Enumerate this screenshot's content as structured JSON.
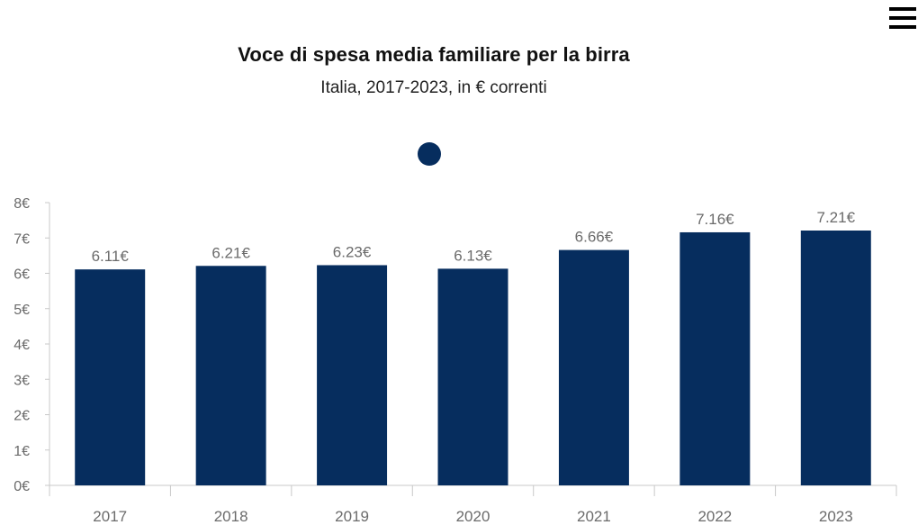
{
  "menu": {
    "icon": "hamburger-menu-icon"
  },
  "colors": {
    "bar": "#062d5e",
    "axis_text": "#6b6b6b",
    "axis_line": "#c8c8c8",
    "label_text": "#6b6b6b"
  },
  "chart_data": {
    "type": "bar",
    "title": "Voce di spesa media familiare per la birra",
    "subtitle": "Italia, 2017-2023, in € correnti",
    "xlabel": "",
    "ylabel": "",
    "categories": [
      "2017",
      "2018",
      "2019",
      "2020",
      "2021",
      "2022",
      "2023"
    ],
    "values": [
      6.11,
      6.21,
      6.23,
      6.13,
      6.66,
      7.16,
      7.21
    ],
    "value_labels": [
      "6.11€",
      "6.21€",
      "6.23€",
      "6.13€",
      "6.66€",
      "7.16€",
      "7.21€"
    ],
    "ylim": [
      0,
      8
    ],
    "y_ticks": [
      0,
      1,
      2,
      3,
      4,
      5,
      6,
      7,
      8
    ],
    "y_tick_labels": [
      "0€",
      "1€",
      "2€",
      "3€",
      "4€",
      "5€",
      "6€",
      "7€",
      "8€"
    ],
    "grid": false,
    "legend": {
      "placement": "top-center",
      "entries": [
        ""
      ]
    }
  }
}
